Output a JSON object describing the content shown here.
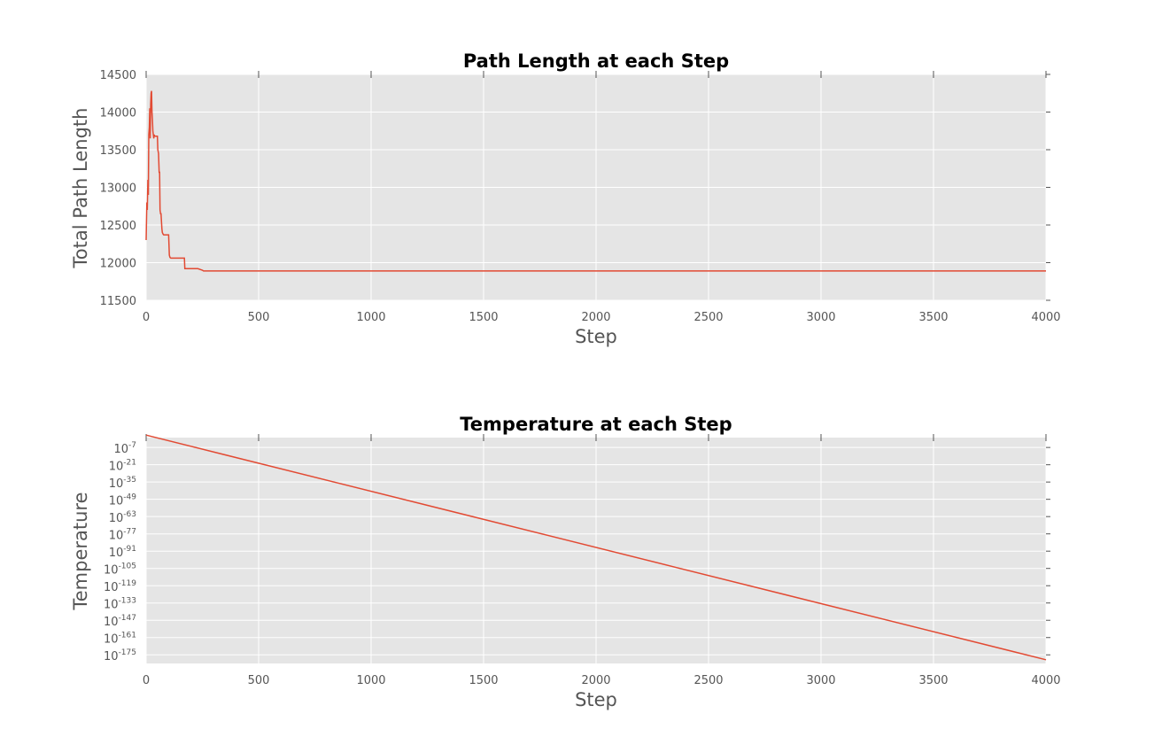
{
  "chart_data": [
    {
      "type": "line",
      "title": "Path Length at each Step",
      "xlabel": "Step",
      "ylabel": "Total Path Length",
      "xlim": [
        0,
        4000
      ],
      "ylim": [
        11500,
        14500
      ],
      "xticks": [
        0,
        500,
        1000,
        1500,
        2000,
        2500,
        3000,
        3500,
        4000
      ],
      "yticks": [
        11500,
        12000,
        12500,
        13000,
        13500,
        14000,
        14500
      ],
      "grid": true,
      "line_color": "#e24a33",
      "background_color": "#e5e5e5",
      "x": [
        0,
        3,
        5,
        8,
        10,
        12,
        14,
        16,
        18,
        20,
        22,
        24,
        26,
        28,
        30,
        32,
        34,
        36,
        38,
        40,
        45,
        50,
        52,
        55,
        58,
        60,
        62,
        64,
        66,
        70,
        72,
        75,
        78,
        80,
        85,
        90,
        95,
        100,
        103,
        106,
        110,
        140,
        170,
        172,
        230,
        250,
        255,
        300,
        1000,
        2000,
        3000,
        4000
      ],
      "values": [
        12300,
        12800,
        12700,
        13100,
        12900,
        13700,
        13800,
        14050,
        13650,
        14100,
        14250,
        14280,
        14000,
        13900,
        13750,
        13700,
        13650,
        13700,
        13680,
        13680,
        13680,
        13680,
        13500,
        13450,
        13200,
        13200,
        12700,
        12650,
        12650,
        12450,
        12400,
        12380,
        12370,
        12370,
        12370,
        12370,
        12370,
        12370,
        12100,
        12070,
        12060,
        12060,
        12060,
        11920,
        11920,
        11900,
        11890,
        11890,
        11890,
        11890,
        11890,
        11890
      ]
    },
    {
      "type": "line",
      "title": "Temperature at each Step",
      "xlabel": "Step",
      "ylabel": "Temperature",
      "y_scale": "log",
      "xlim": [
        0,
        4000
      ],
      "ylim_exponent": [
        -182,
        1
      ],
      "xticks": [
        0,
        500,
        1000,
        1500,
        2000,
        2500,
        3000,
        3500,
        4000
      ],
      "ytick_exponents": [
        -7,
        -21,
        -35,
        -49,
        -63,
        -77,
        -91,
        -105,
        -119,
        -133,
        -147,
        -161,
        -175
      ],
      "ytick_base": "10",
      "grid": true,
      "line_color": "#e24a33",
      "background_color": "#e5e5e5",
      "x": [
        0,
        4000
      ],
      "log10_values": [
        3,
        -179
      ]
    }
  ]
}
